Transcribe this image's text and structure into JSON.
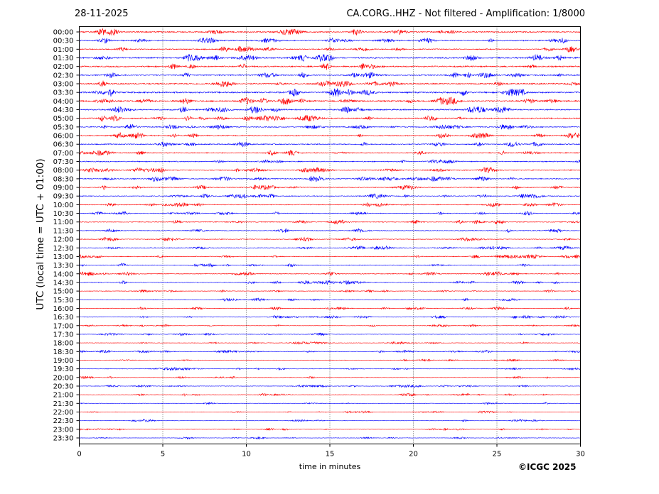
{
  "header": {
    "date": "28-11-2025",
    "title": "CA.CORG..HHZ - Not filtered - Amplification: 1/8000"
  },
  "footer": {
    "copyright": "©ICGC 2025"
  },
  "chart_data": {
    "type": "line",
    "subtype": "helicorder-seismogram",
    "xlabel": "time in minutes",
    "ylabel": "UTC (local time = UTC + 01:00)",
    "xlim": [
      0,
      30
    ],
    "x_ticks": [
      0,
      5,
      10,
      15,
      20,
      25,
      30
    ],
    "vertical_gridlines": true,
    "row_labels": [
      "00:00",
      "00:30",
      "01:00",
      "01:30",
      "02:00",
      "02:30",
      "03:00",
      "03:30",
      "04:00",
      "04:30",
      "05:00",
      "05:30",
      "06:00",
      "06:30",
      "07:00",
      "07:30",
      "08:00",
      "08:30",
      "09:00",
      "09:30",
      "10:00",
      "10:30",
      "11:00",
      "11:30",
      "12:00",
      "12:30",
      "13:00",
      "13:30",
      "14:00",
      "14:30",
      "15:00",
      "15:30",
      "16:00",
      "16:30",
      "17:00",
      "17:30",
      "18:00",
      "18:30",
      "19:00",
      "19:30",
      "20:00",
      "20:30",
      "21:00",
      "21:30",
      "22:00",
      "22:30",
      "23:00",
      "23:30"
    ],
    "row_colors": [
      "#ff0000",
      "#0000ff"
    ],
    "relative_amplitude": [
      0.78,
      0.68,
      0.66,
      0.85,
      0.86,
      0.72,
      0.82,
      0.95,
      0.9,
      0.8,
      0.74,
      0.62,
      0.7,
      0.66,
      0.62,
      0.62,
      0.6,
      0.6,
      0.52,
      0.52,
      0.48,
      0.46,
      0.48,
      0.46,
      0.46,
      0.44,
      0.46,
      0.44,
      0.48,
      0.44,
      0.34,
      0.34,
      0.36,
      0.34,
      0.28,
      0.3,
      0.32,
      0.3,
      0.3,
      0.32,
      0.3,
      0.3,
      0.3,
      0.28,
      0.26,
      0.28,
      0.26,
      0.26
    ]
  }
}
